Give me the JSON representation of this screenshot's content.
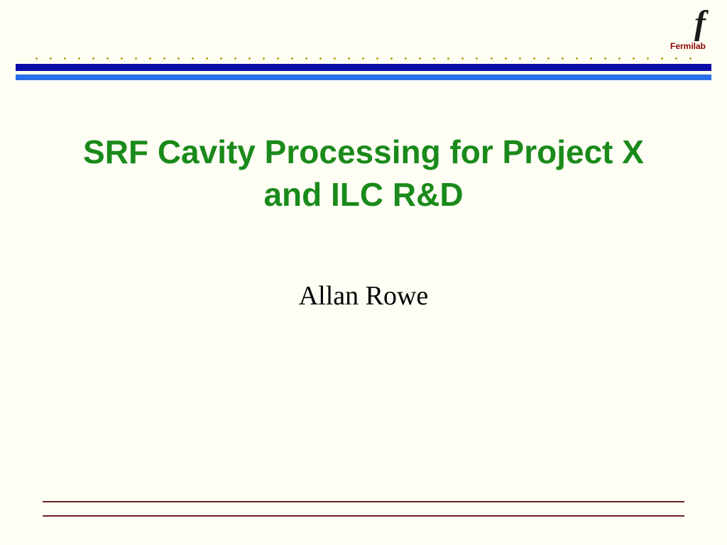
{
  "header": {
    "logo_letter": "f",
    "lab_name": "Fermilab",
    "dot_count": 47,
    "dot_color": "#b8a600",
    "bar_dark_color": "#0b0ba8",
    "bar_light_color": "#2a6fe8"
  },
  "slide": {
    "title": "SRF Cavity Processing for Project X and ILC R&D",
    "title_color": "#1a8a1a",
    "title_fontsize": 46,
    "title_font": "Verdana",
    "author": "Allan Rowe",
    "author_fontsize": 38,
    "author_color": "#000000",
    "background_color": "#fffef4"
  },
  "footer": {
    "line_color": "#6b2020",
    "line_count": 2
  }
}
